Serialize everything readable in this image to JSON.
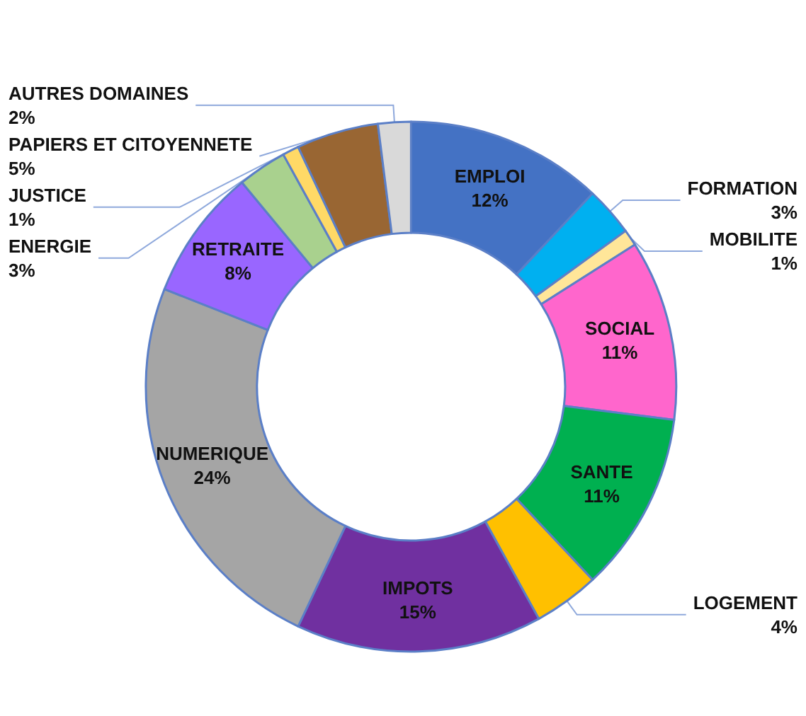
{
  "chart_data": {
    "type": "donut",
    "categories": [
      "EMPLOI",
      "FORMATION",
      "MOBILITE",
      "SOCIAL",
      "SANTE",
      "LOGEMENT",
      "IMPOTS",
      "NUMERIQUE",
      "RETRAITE",
      "ENERGIE",
      "JUSTICE",
      "PAPIERS ET CITOYENNETE",
      "AUTRES DOMAINES"
    ],
    "values": [
      12,
      3,
      1,
      11,
      11,
      4,
      15,
      24,
      8,
      3,
      1,
      5,
      2
    ],
    "colors": [
      "#4472c4",
      "#00b0f0",
      "#ffe699",
      "#ff66cc",
      "#00b050",
      "#ffc000",
      "#7030a0",
      "#a5a5a5",
      "#9966ff",
      "#a9d18e",
      "#ffd966",
      "#996633",
      "#d9d9d9"
    ],
    "value_labels": [
      "12%",
      "3%",
      "1%",
      "11%",
      "11%",
      "4%",
      "15%",
      "24%",
      "8%",
      "3%",
      "1%",
      "5%",
      "2%"
    ],
    "legend": false
  }
}
